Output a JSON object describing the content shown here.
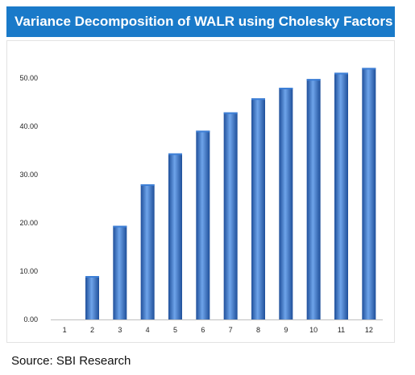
{
  "header": {
    "title": "Variance Decomposition of WALR using Cholesky Factors"
  },
  "footer": {
    "source": "Source: SBI Research"
  },
  "colors": {
    "title_bg": "#1a7ac9",
    "bar_dark": "#1f4f9a",
    "bar_mid": "#3d7fd6",
    "bar_light": "#6ea4ea"
  },
  "chart_data": {
    "type": "bar",
    "title": "",
    "xlabel": "",
    "ylabel": "",
    "categories": [
      "1",
      "2",
      "3",
      "4",
      "5",
      "6",
      "7",
      "8",
      "9",
      "10",
      "11",
      "12"
    ],
    "values": [
      0.0,
      9.0,
      19.4,
      28.0,
      34.4,
      39.1,
      42.9,
      45.8,
      48.0,
      49.8,
      51.1,
      52.1
    ],
    "ylim": [
      0,
      50
    ],
    "yticks": [
      "0.00",
      "10.00",
      "20.00",
      "30.00",
      "40.00",
      "50.00"
    ],
    "grid": false,
    "legend": "none"
  }
}
